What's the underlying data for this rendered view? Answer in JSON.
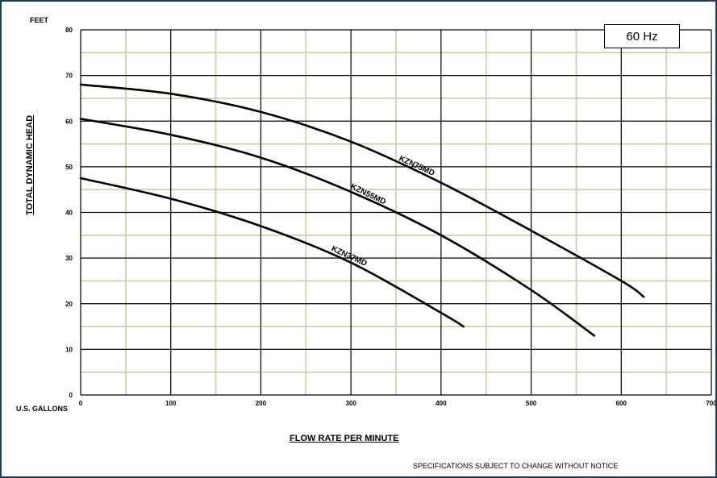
{
  "page": {
    "feet_label": "FEET",
    "gallons_label": "U.S. GALLONS",
    "footer_note": "SPECIFICATIONS SUBJECT TO CHANGE WITHOUT NOTICE",
    "frequency_label": "60 Hz"
  },
  "chart_data": {
    "type": "line",
    "title": "",
    "xlabel": "FLOW RATE PER MINUTE",
    "ylabel": "TOTAL DYNAMIC HEAD",
    "xlim": [
      0,
      700
    ],
    "ylim": [
      0,
      80
    ],
    "x_ticks": [
      0,
      100,
      200,
      300,
      400,
      500,
      600,
      700
    ],
    "y_ticks": [
      0,
      10,
      20,
      30,
      40,
      50,
      60,
      70,
      80
    ],
    "grid": true,
    "minor_grid": true,
    "colors": {
      "major_grid": "#000000",
      "minor_grid": "#d2c8a8",
      "curve": "#000000",
      "frame": "#1f3b5e"
    },
    "series": [
      {
        "name": "KZN75MD",
        "points": [
          [
            0,
            68
          ],
          [
            100,
            66
          ],
          [
            200,
            62
          ],
          [
            300,
            55.5
          ],
          [
            400,
            46.5
          ],
          [
            500,
            36
          ],
          [
            600,
            25
          ],
          [
            625,
            21.5
          ]
        ]
      },
      {
        "name": "KZN55MD",
        "points": [
          [
            0,
            60.5
          ],
          [
            100,
            57
          ],
          [
            200,
            52
          ],
          [
            300,
            44.5
          ],
          [
            400,
            35
          ],
          [
            500,
            23
          ],
          [
            570,
            13
          ]
        ]
      },
      {
        "name": "KZN37MD",
        "points": [
          [
            0,
            47.5
          ],
          [
            100,
            43
          ],
          [
            200,
            37
          ],
          [
            300,
            29
          ],
          [
            400,
            18
          ],
          [
            425,
            15
          ]
        ]
      }
    ]
  }
}
